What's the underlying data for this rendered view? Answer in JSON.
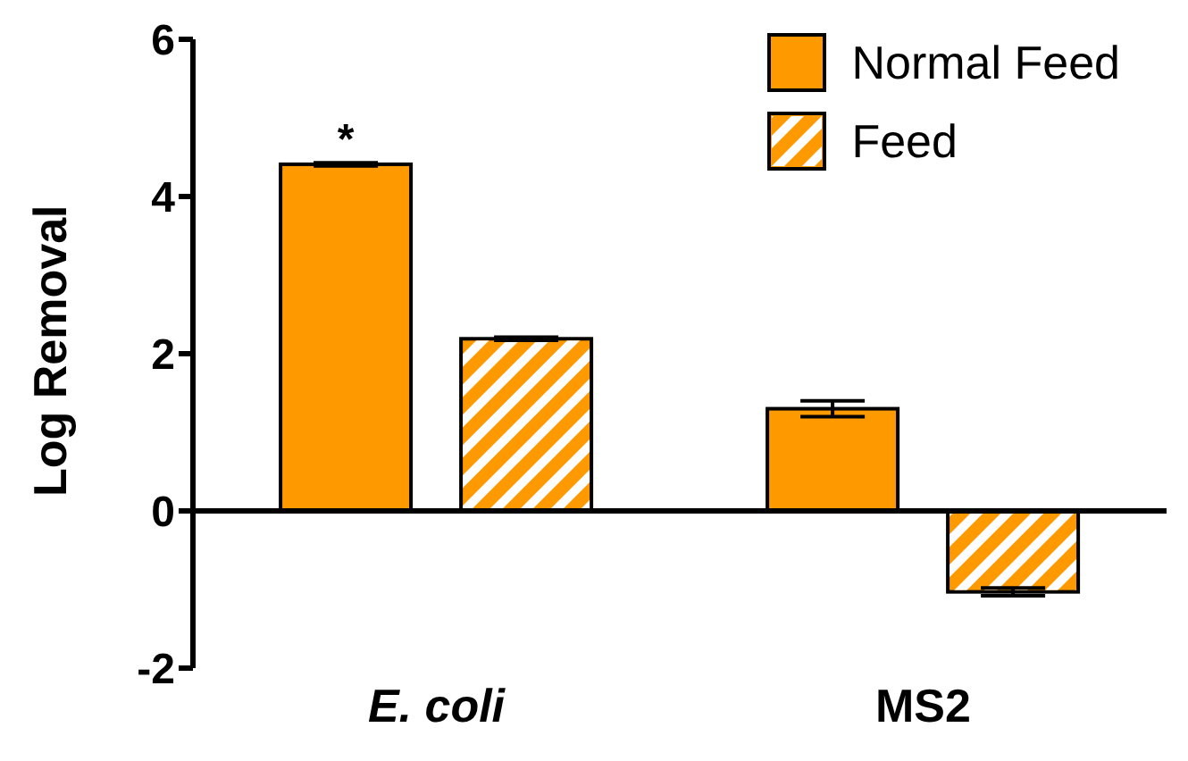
{
  "chart_data": {
    "type": "bar",
    "ylabel": "Log Removal",
    "categories": [
      "E. coli",
      "MS2"
    ],
    "series": [
      {
        "name": "Normal Feed",
        "color": "#ff9900",
        "values": [
          4.41,
          1.3
        ],
        "errors": [
          0.02,
          0.1
        ]
      },
      {
        "name": "Feed",
        "color": "#ff9900",
        "values": [
          2.19,
          -1.03
        ],
        "errors": [
          0.02,
          0.05
        ]
      }
    ],
    "ylim": [
      -2,
      6
    ],
    "yticks": [
      -2,
      0,
      2,
      4,
      6
    ],
    "legend": "top right",
    "ref_lines": [
      {
        "axis": "y",
        "value": 0,
        "color": "#000000"
      }
    ],
    "annotations": [
      "*"
    ]
  }
}
